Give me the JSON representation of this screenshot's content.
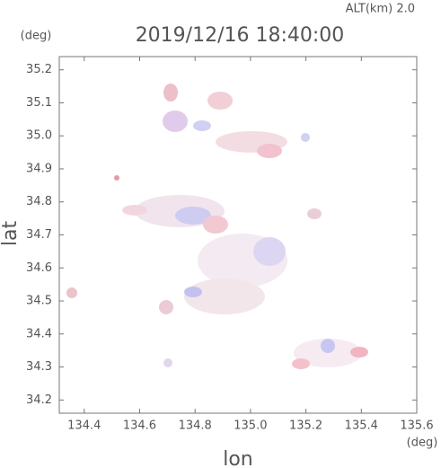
{
  "chart_data": {
    "type": "map",
    "title": "2019/12/16 18:40:00",
    "subtitle": "ALT(km) 2.0",
    "x_label": "lon",
    "y_label": "lat",
    "x_unit": "(deg)",
    "y_unit": "(deg)",
    "xlim": [
      134.31,
      135.6
    ],
    "ylim": [
      34.16,
      35.24
    ],
    "xticks": [
      134.4,
      134.6,
      134.8,
      {
        "value": 135,
        "label": "135.0"
      },
      135.2,
      135.4,
      135.6
    ],
    "yticks": [
      34.2,
      34.3,
      34.4,
      34.5,
      34.6,
      34.7,
      34.8,
      34.9,
      {
        "value": 35,
        "label": "35.0"
      },
      35.1,
      35.2
    ]
  }
}
